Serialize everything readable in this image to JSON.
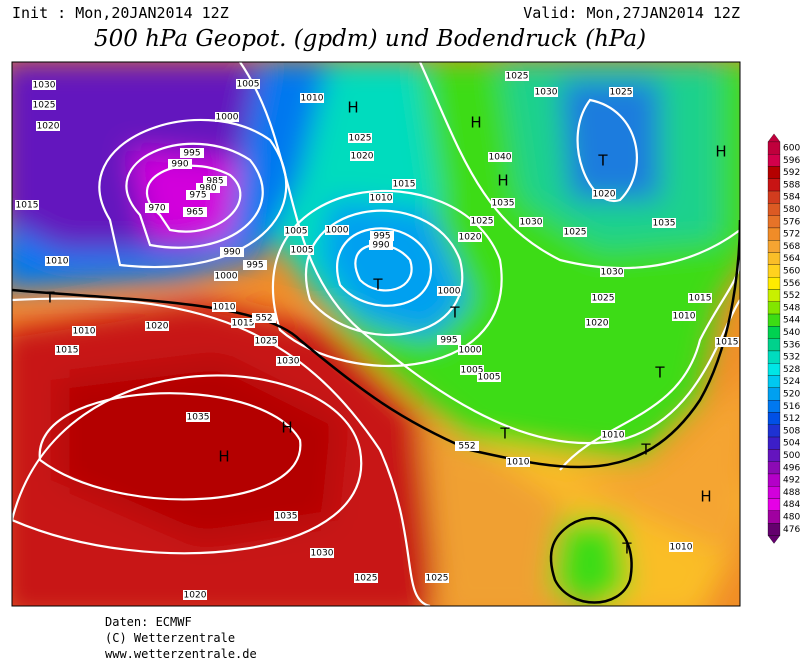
{
  "header": {
    "init": "Init : Mon,20JAN2014 12Z",
    "valid": "Valid: Mon,27JAN2014 12Z",
    "title": "500 hPa Geopot. (gpdm) und Bodendruck (hPa)"
  },
  "map": {
    "isobar_labels": [
      "1030",
      "1025",
      "1020",
      "1015",
      "1010",
      "1005",
      "1000",
      "995",
      "990",
      "985",
      "980",
      "975",
      "970",
      "965",
      "990",
      "995",
      "1000",
      "1010",
      "1015",
      "1020",
      "1010",
      "1015",
      "1025",
      "1030",
      "1035",
      "1035",
      "1030",
      "1025",
      "1025",
      "1020",
      "1010",
      "1025",
      "1020",
      "1015",
      "1010",
      "1005",
      "1005",
      "1000",
      "995",
      "990",
      "1000",
      "995",
      "1000",
      "1005",
      "1005",
      "1020",
      "1025",
      "1035",
      "1030",
      "1040",
      "1025",
      "1030",
      "1025",
      "1020",
      "1025",
      "1035",
      "1030",
      "1025",
      "1020",
      "1015",
      "1010",
      "1015",
      "1010",
      "1010",
      "1010",
      "552",
      "552"
    ],
    "centers": [
      "H",
      "H",
      "H",
      "H",
      "T",
      "T",
      "T",
      "T",
      "H",
      "H",
      "T",
      "T",
      "T",
      "H",
      "T"
    ]
  },
  "colorbar": {
    "levels": [
      600,
      596,
      592,
      588,
      584,
      580,
      576,
      572,
      568,
      564,
      560,
      556,
      552,
      548,
      544,
      540,
      536,
      532,
      528,
      524,
      520,
      516,
      512,
      508,
      504,
      500,
      496,
      492,
      488,
      484,
      480,
      476
    ],
    "colors": [
      "#c0003c",
      "#d2004b",
      "#b40000",
      "#c81414",
      "#d23c1e",
      "#dc5a23",
      "#e67328",
      "#f08c28",
      "#f5a532",
      "#fabe28",
      "#ffd21e",
      "#ffeb00",
      "#c8f000",
      "#82e600",
      "#3cdc14",
      "#00d250",
      "#00d28c",
      "#00dcbe",
      "#00e6e6",
      "#00c8f0",
      "#00a0f0",
      "#0078f0",
      "#0050e6",
      "#1e32d2",
      "#3c1ec8",
      "#6414be",
      "#8c0ab4",
      "#b400c8",
      "#d200dc",
      "#e600e6",
      "#a000a0",
      "#64006e"
    ]
  },
  "footer": {
    "data": "Daten: ECMWF",
    "copyright": "(C) Wetterzentrale",
    "url": "www.wetterzentrale.de"
  }
}
